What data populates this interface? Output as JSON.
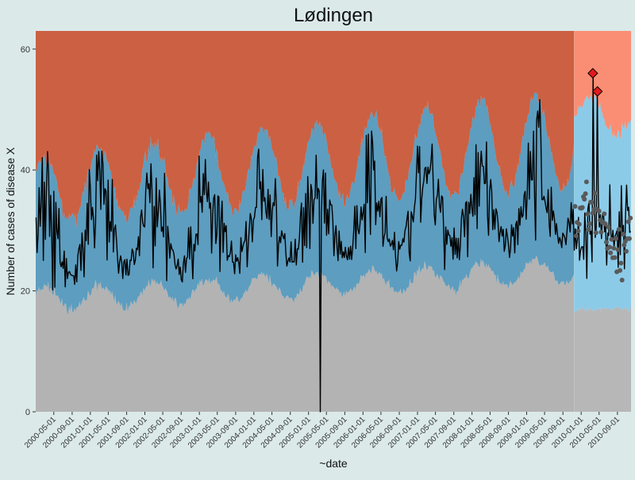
{
  "chart_data": {
    "type": "line",
    "title": "Lødingen",
    "xlabel": "~date",
    "ylabel": "Number of cases of disease X",
    "ylim": [
      0,
      63
    ],
    "y_ticks": [
      0,
      20,
      40,
      60
    ],
    "x_tick_labels": [
      "2000-05-01",
      "2000-09-01",
      "2001-01-01",
      "2001-05-01",
      "2001-09-01",
      "2002-01-01",
      "2002-05-01",
      "2002-09-01",
      "2003-01-01",
      "2003-05-01",
      "2003-09-01",
      "2004-01-01",
      "2004-05-01",
      "2004-09-01",
      "2005-01-01",
      "2005-05-01",
      "2005-09-01",
      "2006-01-01",
      "2006-05-01",
      "2006-09-01",
      "2007-01-01",
      "2007-05-01",
      "2007-09-01",
      "2008-01-01",
      "2008-05-01",
      "2008-09-01",
      "2009-01-01",
      "2009-05-01",
      "2009-09-01",
      "2010-01-01",
      "2010-05-01",
      "2010-09-01"
    ],
    "x_range": [
      "2000-01-01",
      "2010-12-01"
    ],
    "forecast_start": "2009-11-15",
    "bands": [
      {
        "name": "normal",
        "color": "#b3b3b3",
        "color_forecast": "#b7b7b7"
      },
      {
        "name": "expected",
        "color": "#5d9dbf",
        "color_forecast": "#8ccbe8"
      },
      {
        "name": "high",
        "color": "#cc6042",
        "color_forecast": "#fa8e74"
      }
    ],
    "seasonal_model": {
      "lower_threshold": {
        "base": 18.5,
        "amplitude": 2.0,
        "trend_per_year": 0.5
      },
      "upper_threshold": {
        "base": 36.5,
        "amplitude": 5.5,
        "trend_per_year": 0.9
      },
      "peak_month": 2
    },
    "series": [
      {
        "name": "observed",
        "color": "#000000"
      },
      {
        "name": "forecast points",
        "color": "#5a5a5a"
      }
    ],
    "anomaly_dip": {
      "date": "2005-03-20",
      "value": 0
    },
    "outbreak_markers": [
      {
        "date": "2010-03-20",
        "value": 56,
        "color": "#e31a1c"
      },
      {
        "date": "2010-04-20",
        "value": 53,
        "color": "#e31a1c"
      }
    ],
    "grid": false,
    "legend": "none"
  }
}
